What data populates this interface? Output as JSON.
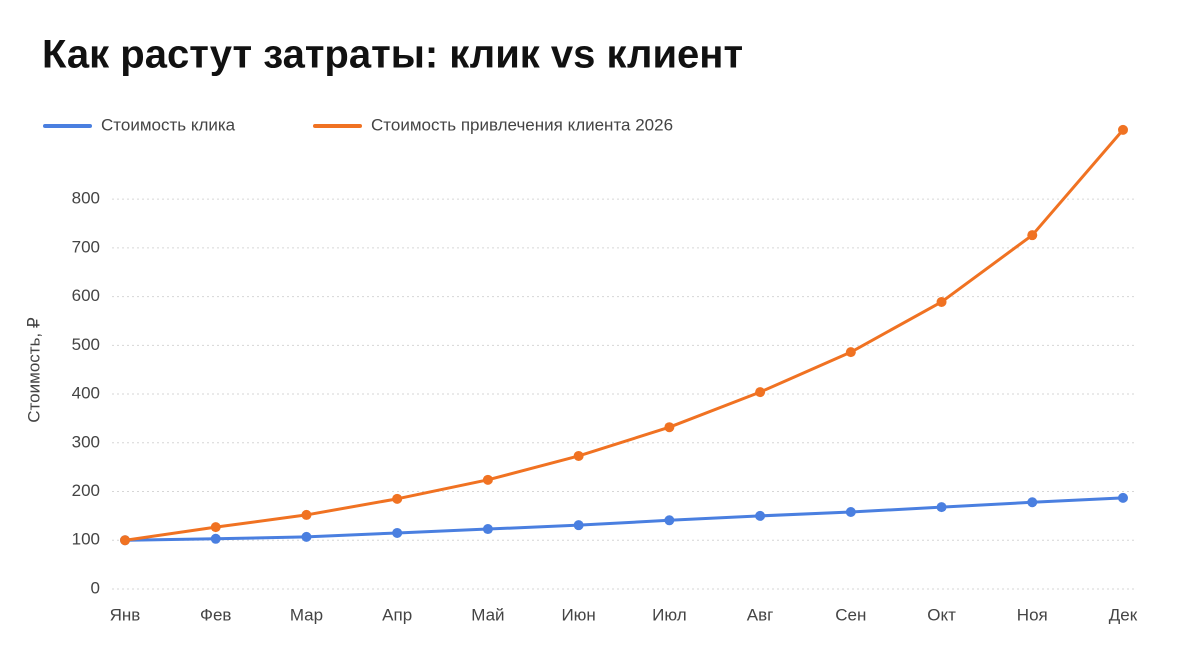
{
  "chart_data": {
    "type": "line",
    "title": "Как растут затраты: клик vs клиент",
    "y_label": "Стоимость, ₽",
    "categories": [
      "Янв",
      "Фев",
      "Мар",
      "Апр",
      "Май",
      "Июн",
      "Июл",
      "Авг",
      "Сен",
      "Окт",
      "Ноя",
      "Дек"
    ],
    "series": [
      {
        "name": "Стоимость клика",
        "color": "#4a7fe0",
        "values": [
          100,
          103,
          107,
          115,
          123,
          131,
          141,
          150,
          158,
          168,
          178,
          187
        ]
      },
      {
        "name": "Стоимость привлечения клиента 2026",
        "color": "#f07222",
        "values": [
          100,
          127,
          152,
          185,
          224,
          273,
          332,
          404,
          486,
          589,
          726,
          942
        ]
      }
    ],
    "ylim": [
      0,
      950
    ],
    "yticks": [
      0,
      100,
      200,
      300,
      400,
      500,
      600,
      700,
      800
    ],
    "grid": true
  }
}
